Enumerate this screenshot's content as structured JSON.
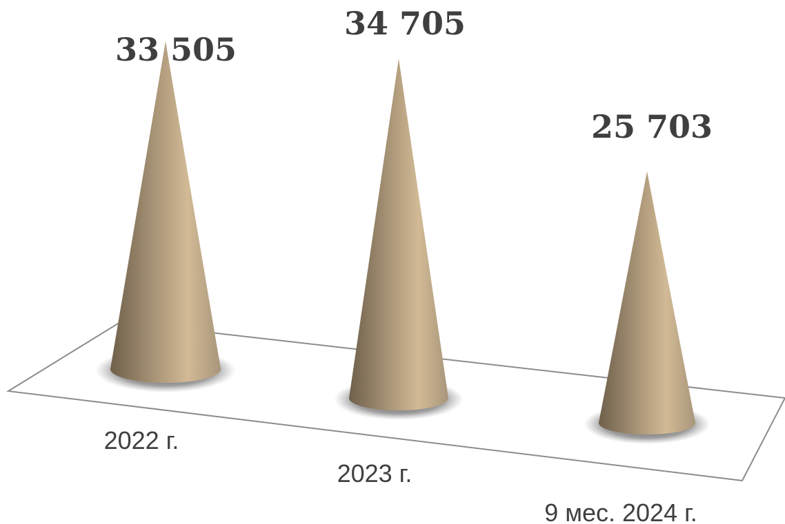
{
  "chart_data": {
    "type": "bar",
    "style": "3d-cone",
    "categories": [
      "2022 г.",
      "2023 г.",
      "9 мес. 2024 г."
    ],
    "values": [
      33505,
      34705,
      25703
    ],
    "value_labels": [
      "33 505",
      "34 705",
      "25 703"
    ],
    "title": "",
    "xlabel": "",
    "ylabel": "",
    "grid": false,
    "legend": "none",
    "colors": {
      "cone_dark": "#7a6a54",
      "cone_mid": "#a8957a",
      "cone_light": "#d4bc98",
      "floor_line": "#8c8c8c",
      "shadow": "#404040",
      "value_text": "#3f3f3f",
      "category_text": "#404040"
    }
  }
}
